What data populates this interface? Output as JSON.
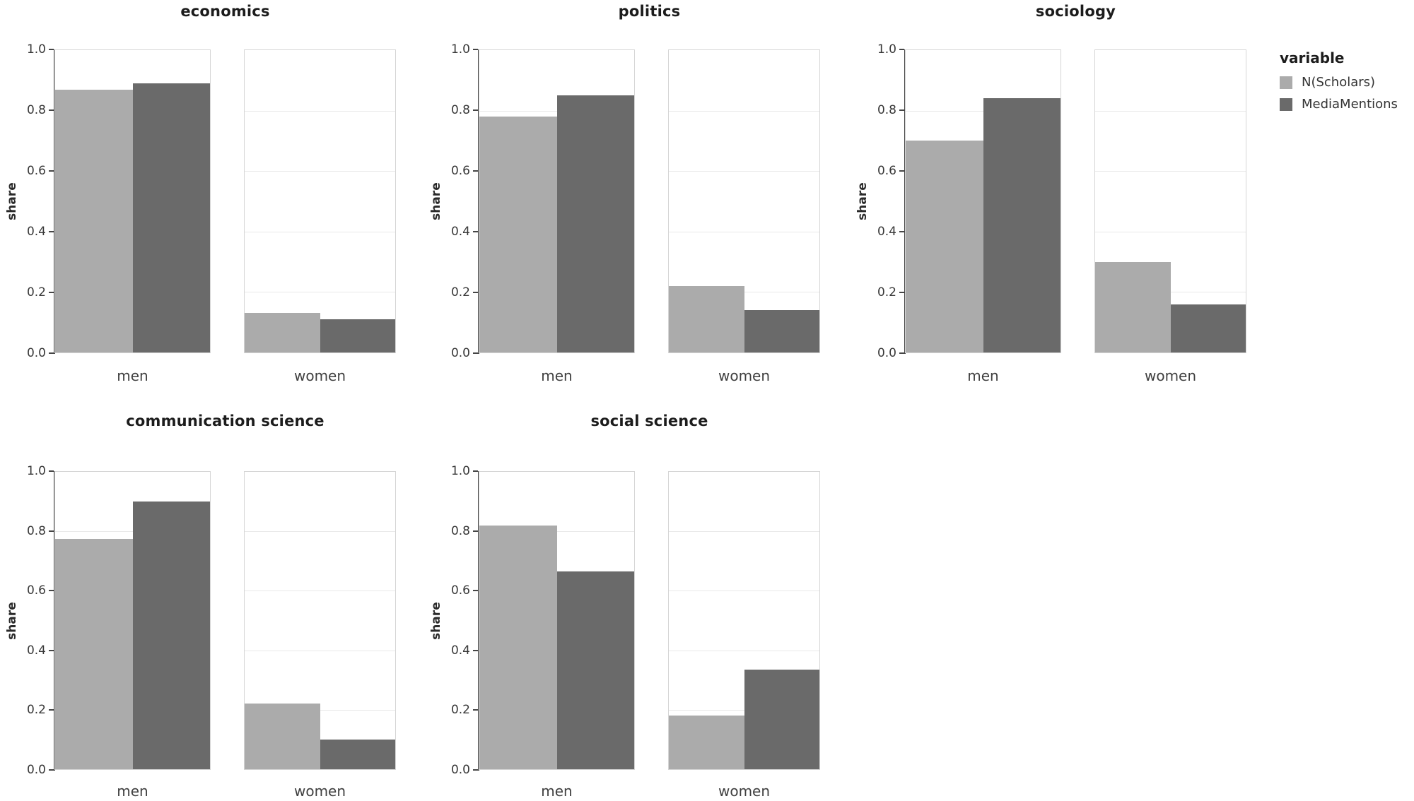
{
  "chart_data": {
    "type": "bar",
    "ylabel": "share",
    "ylim": [
      0,
      1
    ],
    "yticks": [
      0.0,
      0.2,
      0.4,
      0.6,
      0.8,
      1.0
    ],
    "categories": [
      "men",
      "women"
    ],
    "series": [
      "N(Scholars)",
      "MediaMentions"
    ],
    "grid": "horizontal",
    "legend": {
      "title": "variable",
      "position": "right",
      "entries": [
        {
          "label": "N(Scholars)",
          "color": "#ababab"
        },
        {
          "label": "MediaMentions",
          "color": "#6a6a6a"
        }
      ]
    },
    "facets": [
      {
        "title": "economics",
        "row": 0,
        "col": 0,
        "values": {
          "men": [
            0.87,
            0.89
          ],
          "women": [
            0.13,
            0.11
          ]
        }
      },
      {
        "title": "politics",
        "row": 0,
        "col": 1,
        "values": {
          "men": [
            0.78,
            0.85
          ],
          "women": [
            0.22,
            0.14
          ]
        }
      },
      {
        "title": "sociology",
        "row": 0,
        "col": 2,
        "values": {
          "men": [
            0.7,
            0.84
          ],
          "women": [
            0.3,
            0.16
          ]
        }
      },
      {
        "title": "communication science",
        "row": 1,
        "col": 0,
        "values": {
          "men": [
            0.775,
            0.9
          ],
          "women": [
            0.22,
            0.1
          ]
        }
      },
      {
        "title": "social science",
        "row": 1,
        "col": 1,
        "values": {
          "men": [
            0.82,
            0.665
          ],
          "women": [
            0.18,
            0.335
          ]
        }
      }
    ]
  }
}
